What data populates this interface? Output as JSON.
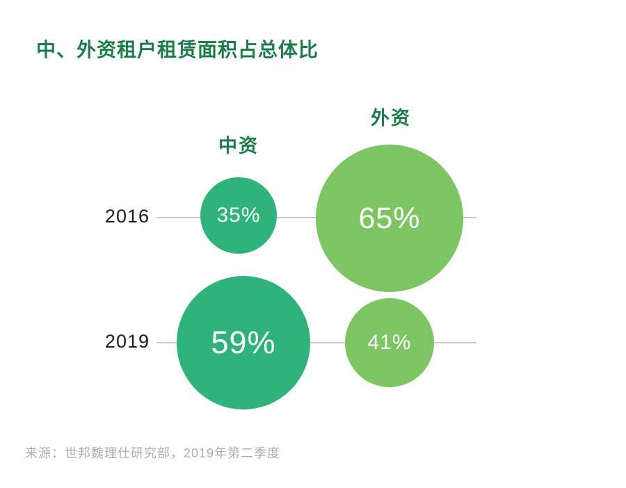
{
  "title": "中、外资租户租赁面积占总体比",
  "columns": {
    "domestic": "中资",
    "foreign": "外资"
  },
  "rows": [
    {
      "year": "2016",
      "domestic": "35%",
      "foreign": "65%"
    },
    {
      "year": "2019",
      "domestic": "59%",
      "foreign": "41%"
    }
  ],
  "source": "来源：世邦魏理仕研究部，2019年第二季度",
  "colors": {
    "title": "#1C7C4C",
    "domestic": "#2FB37B",
    "foreign": "#7DC463",
    "line": "#C9C9C9",
    "source_text": "#ACACAC"
  },
  "chart_data": {
    "type": "bubble",
    "title": "中、外资租户租赁面积占总体比",
    "categories": [
      "2016",
      "2019"
    ],
    "series": [
      {
        "name": "中资",
        "values": [
          35,
          59
        ],
        "unit": "%",
        "color": "#2FB37B"
      },
      {
        "name": "外资",
        "values": [
          65,
          41
        ],
        "unit": "%",
        "color": "#7DC463"
      }
    ],
    "value_encoding": "circle area proportional to percentage",
    "legend_position": "column headers above bubbles",
    "grid": "horizontal guide line per year row",
    "source": "来源：世邦魏理仕研究部，2019年第二季度"
  }
}
